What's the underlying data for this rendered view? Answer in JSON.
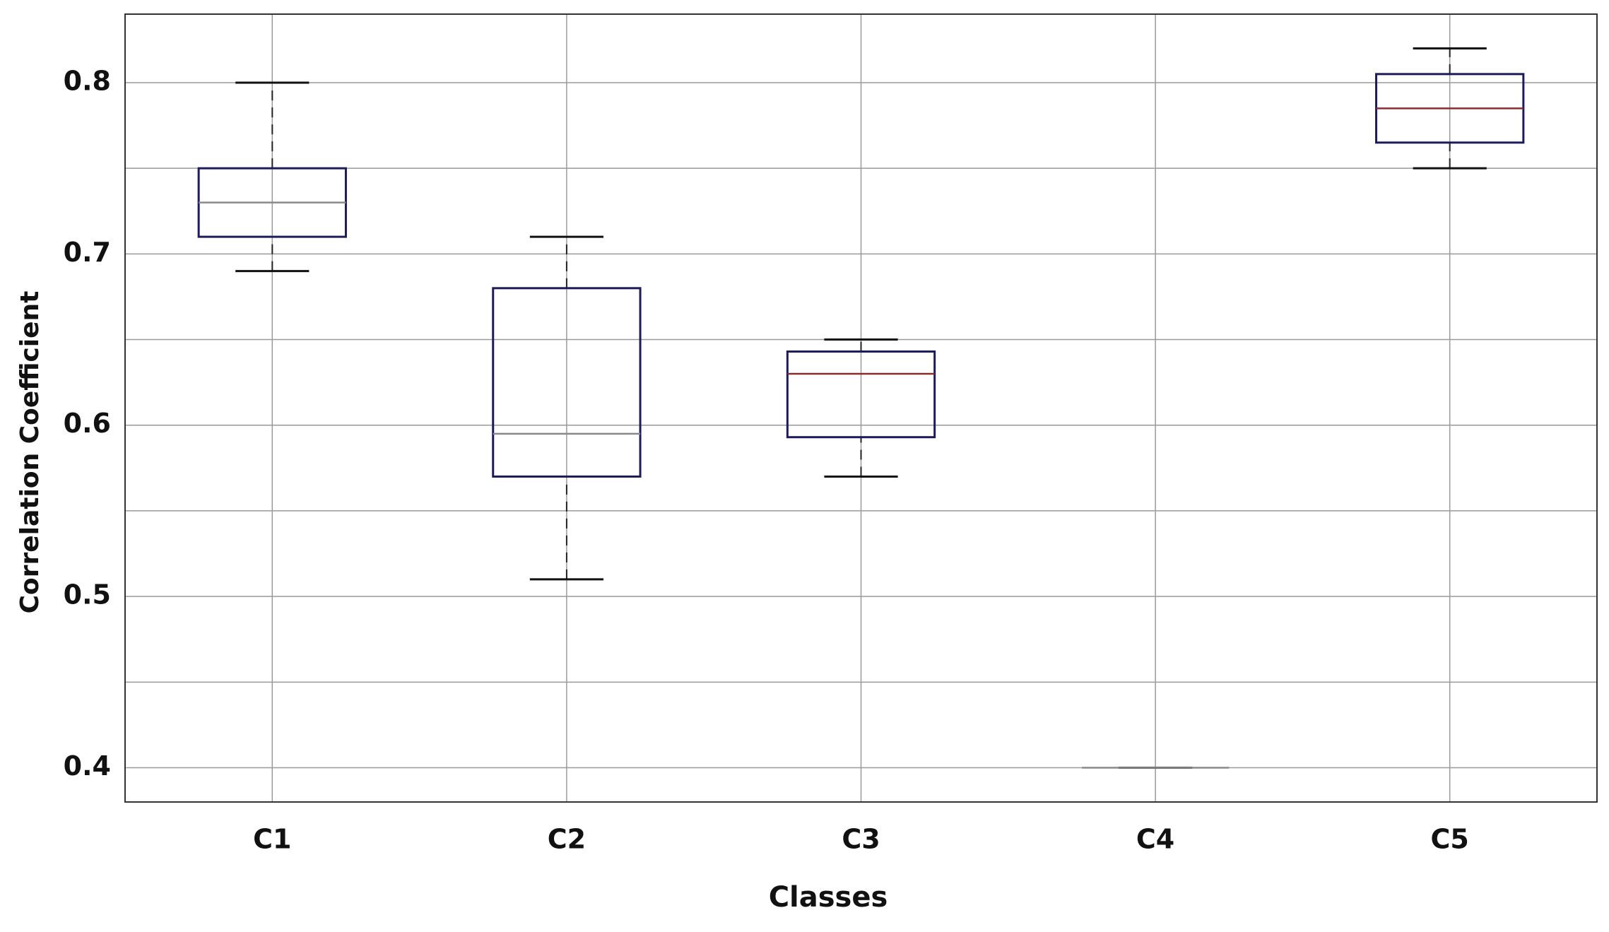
{
  "chart_data": {
    "type": "box",
    "x_label": "Classes",
    "y_label": "Correlation Coefficient",
    "categories": [
      "C1",
      "C2",
      "C3",
      "C4",
      "C5"
    ],
    "boxes": [
      {
        "low": 0.69,
        "q1": 0.71,
        "median": 0.73,
        "q3": 0.75,
        "high": 0.8,
        "median_color": "#8a8a8a"
      },
      {
        "low": 0.51,
        "q1": 0.57,
        "median": 0.595,
        "q3": 0.68,
        "high": 0.71,
        "median_color": "#8a8a8a"
      },
      {
        "low": 0.57,
        "q1": 0.593,
        "median": 0.63,
        "q3": 0.643,
        "high": 0.65,
        "median_color": "#8b2c2c"
      },
      {
        "low": 0.4,
        "q1": 0.4,
        "median": 0.4,
        "q3": 0.4,
        "high": 0.4,
        "median_color": "#8a8a8a"
      },
      {
        "low": 0.75,
        "q1": 0.765,
        "median": 0.785,
        "q3": 0.805,
        "high": 0.82,
        "median_color": "#8b2c2c"
      }
    ],
    "box_color": "#1c1c5a",
    "ylim": [
      0.38,
      0.84
    ],
    "yticks": [
      0.4,
      0.5,
      0.6,
      0.7,
      0.8
    ],
    "minor_yticks": [
      0.45,
      0.55,
      0.65,
      0.75
    ],
    "grid": true
  }
}
